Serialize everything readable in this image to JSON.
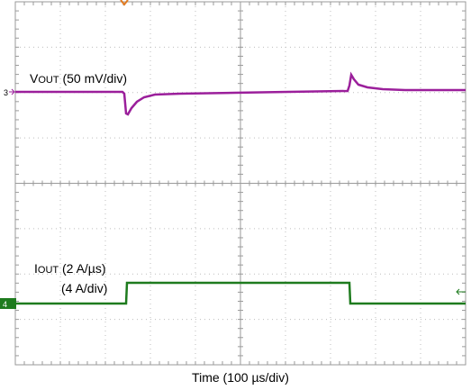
{
  "vout_label": {
    "prefix": "V",
    "sub": "OUT",
    "rest": " (50 mV/div)"
  },
  "iout_label": {
    "prefix": "I",
    "sub": "OUT",
    "rest": " (2 A/µs)",
    "line2": "(4 A/div)"
  },
  "channel_markers": {
    "ch3": "3",
    "ch4": "4"
  },
  "x_axis_label": "Time (100 µs/div)"
}
